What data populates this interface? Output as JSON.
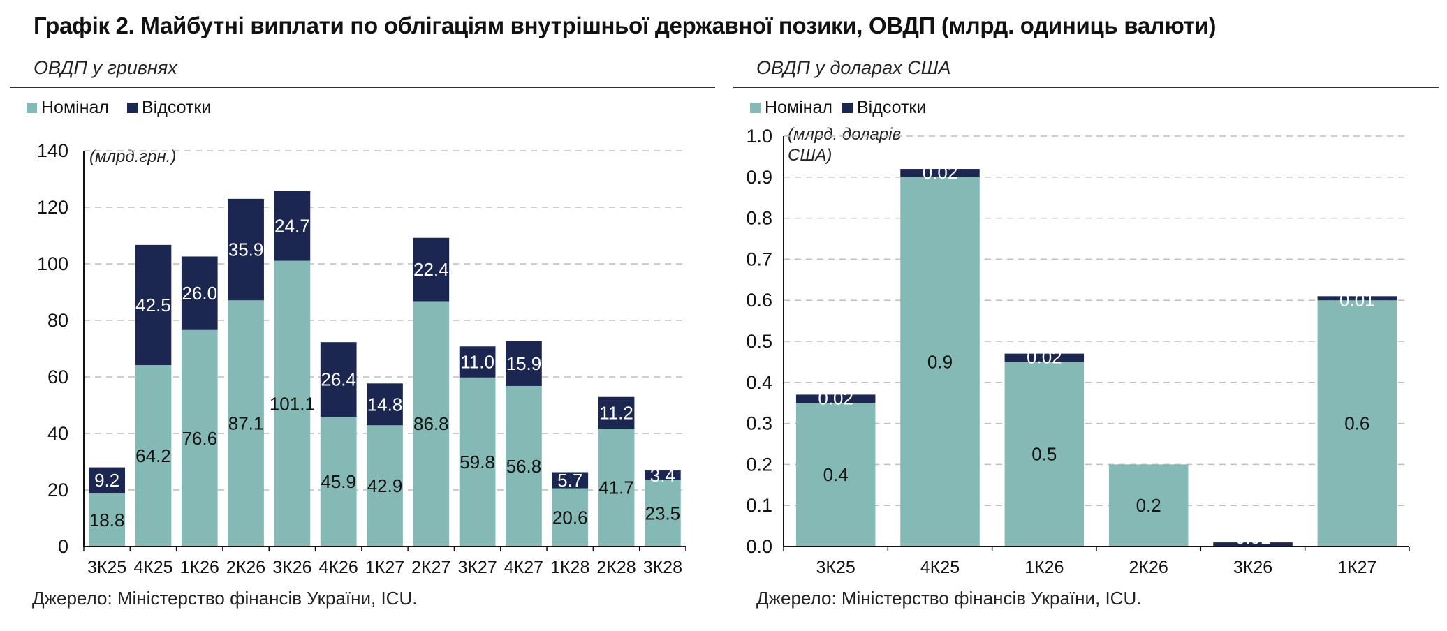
{
  "title": "Графік 2. Майбутні виплати по облігаціям внутрішньої державної позики, ОВДП (млрд. одиниць валюти)",
  "colors": {
    "nominal": "#85b9b5",
    "interest": "#1c2751",
    "grid": "#bdbdbd"
  },
  "left_panel": {
    "subtitle": "ОВДП у гривнях",
    "legend": [
      "Номінал",
      "Відсотки"
    ],
    "unit_label": "(млрд.грн.)",
    "source": "Джерело: Міністерство фінансів України, ICU."
  },
  "right_panel": {
    "subtitle": "ОВДП у доларах США",
    "legend": [
      "Номінал",
      "Відсотки"
    ],
    "unit_label_line1": "(млрд. доларів",
    "unit_label_line2": "США)",
    "source": "Джерело: Міністерство фінансів України, ICU."
  },
  "chart_data": [
    {
      "type": "bar",
      "stacked": true,
      "title": "ОВДП у гривнях",
      "ylabel": "(млрд.грн.)",
      "ylim": [
        0,
        140
      ],
      "yticks": [
        "0",
        "20",
        "40",
        "60",
        "80",
        "100",
        "120",
        "140"
      ],
      "grid": true,
      "legend_position": "top-left",
      "categories": [
        "3К25",
        "4К25",
        "1К26",
        "2К26",
        "3К26",
        "4К26",
        "1К27",
        "2К27",
        "3К27",
        "4К27",
        "1К28",
        "2К28",
        "3К28"
      ],
      "series": [
        {
          "name": "Номінал",
          "values": [
            18.8,
            64.2,
            76.6,
            87.1,
            101.1,
            45.9,
            42.9,
            86.8,
            59.8,
            56.8,
            20.6,
            41.7,
            23.5
          ],
          "labels": [
            "18.8",
            "64.2",
            "76.6",
            "87.1",
            "101.1",
            "45.9",
            "42.9",
            "86.8",
            "59.8",
            "56.8",
            "20.6",
            "41.7",
            "23.5"
          ]
        },
        {
          "name": "Відсотки",
          "values": [
            9.2,
            42.5,
            26.0,
            35.9,
            24.7,
            26.4,
            14.8,
            22.4,
            11.0,
            15.9,
            5.7,
            11.2,
            3.4
          ],
          "labels": [
            "9.2",
            "42.5",
            "26.0",
            "35.9",
            "24.7",
            "26.4",
            "14.8",
            "22.4",
            "11.0",
            "15.9",
            "5.7",
            "11.2",
            "3.4"
          ]
        }
      ]
    },
    {
      "type": "bar",
      "stacked": true,
      "title": "ОВДП у доларах США",
      "ylabel": "(млрд. доларів США)",
      "ylim": [
        0,
        1.0
      ],
      "yticks": [
        "0.0",
        "0.1",
        "0.2",
        "0.3",
        "0.4",
        "0.5",
        "0.6",
        "0.7",
        "0.8",
        "0.9",
        "1.0"
      ],
      "grid": true,
      "legend_position": "top-left",
      "categories": [
        "3К25",
        "4К25",
        "1К26",
        "2К26",
        "3К26",
        "1К27"
      ],
      "series": [
        {
          "name": "Номінал",
          "values": [
            0.35,
            0.9,
            0.45,
            0.2,
            0.0,
            0.6
          ],
          "labels": [
            "0.4",
            "0.9",
            "0.5",
            "0.2",
            "",
            "0.6"
          ]
        },
        {
          "name": "Відсотки",
          "values": [
            0.02,
            0.02,
            0.02,
            0.0,
            0.01,
            0.01
          ],
          "labels": [
            "0.02",
            "0.02",
            "0.02",
            "",
            "0.01",
            "0.01"
          ]
        }
      ]
    }
  ]
}
